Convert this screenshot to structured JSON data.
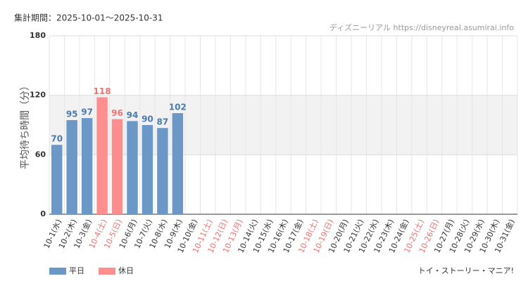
{
  "chart_data": {
    "type": "bar",
    "title": "集計期間：2025-10-01～2025-10-31",
    "source": "ディズニーリアル https://disneyreal.asumirai.info",
    "footer": "トイ・ストーリー・マニア!",
    "y_label": "平均待ち時間（分）",
    "categories": [
      "10-1(水)",
      "10-2(木)",
      "10-3(金)",
      "10-4(土)",
      "10-5(日)",
      "10-6(月)",
      "10-7(火)",
      "10-8(水)",
      "10-9(木)",
      "10-10(金)",
      "10-11(土)",
      "10-12(日)",
      "10-13(月)",
      "10-14(火)",
      "10-15(水)",
      "10-16(木)",
      "10-17(金)",
      "10-18(土)",
      "10-19(日)",
      "10-20(月)",
      "10-21(火)",
      "10-22(水)",
      "10-23(木)",
      "10-24(金)",
      "10-25(土)",
      "10-26(日)",
      "10-27(月)",
      "10-28(火)",
      "10-29(水)",
      "10-30(木)",
      "10-31(金)"
    ],
    "category_colors": [
      "#333",
      "#333",
      "#333",
      "#f07070",
      "#f07070",
      "#333",
      "#333",
      "#333",
      "#333",
      "#333",
      "#f07070",
      "#f07070",
      "#f07070",
      "#333",
      "#333",
      "#333",
      "#333",
      "#f07070",
      "#f07070",
      "#333",
      "#333",
      "#333",
      "#333",
      "#333",
      "#f07070",
      "#f07070",
      "#333",
      "#333",
      "#333",
      "#333",
      "#333"
    ],
    "series": [
      {
        "name": "平日",
        "color": "#6b98c6",
        "label_color": "#4a7ab0",
        "values": [
          70,
          95,
          97,
          null,
          null,
          94,
          90,
          87,
          102,
          null,
          null,
          null,
          null,
          null,
          null,
          null,
          null,
          null,
          null,
          null,
          null,
          null,
          null,
          null,
          null,
          null,
          null,
          null,
          null,
          null,
          null
        ]
      },
      {
        "name": "休日",
        "color": "#ff8f8f",
        "label_color": "#f07070",
        "values": [
          null,
          null,
          null,
          118,
          96,
          null,
          null,
          null,
          null,
          null,
          null,
          null,
          null,
          null,
          null,
          null,
          null,
          null,
          null,
          null,
          null,
          null,
          null,
          null,
          null,
          null,
          null,
          null,
          null,
          null,
          null
        ]
      }
    ],
    "ylim": [
      0,
      180
    ],
    "yticks": [
      0,
      60,
      120,
      180
    ],
    "grid": true,
    "band_shading": true,
    "legend": "bottom-left"
  }
}
